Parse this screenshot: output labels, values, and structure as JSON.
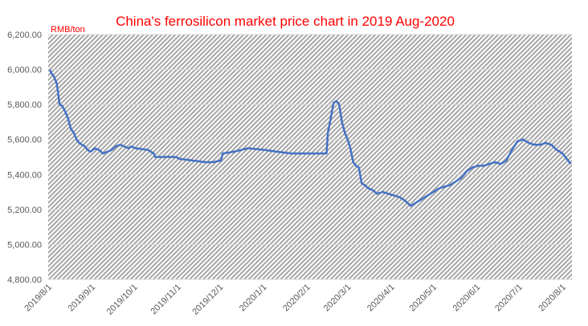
{
  "chart_data": {
    "type": "line",
    "title": "China's ferrosilicon market price chart in 2019 Aug-2020",
    "ylabel": "RMB/ton",
    "xlabel": "",
    "ylim": [
      4800,
      6200
    ],
    "y_ticks": [
      "6,200.00",
      "6,000.00",
      "5,800.00",
      "5,600.00",
      "5,400.00",
      "5,200.00",
      "5,000.00",
      "4,800.00"
    ],
    "x_ticks": [
      "2019/8/1",
      "2019/9/1",
      "2019/10/1",
      "2019/11/1",
      "2019/12/1",
      "2020/1/1",
      "2020/2/1",
      "2020/3/1",
      "2020/4/1",
      "2020/5/1",
      "2020/6/1",
      "2020/7/1",
      "2020/8/1"
    ],
    "grid": true,
    "line_color": "#4472c4",
    "plot_background": "patterned gray/white",
    "series": [
      {
        "name": "",
        "x": [
          "2019/8/1",
          "2019/8/2",
          "2019/8/4",
          "2019/8/6",
          "2019/8/8",
          "2019/8/10",
          "2019/8/12",
          "2019/8/14",
          "2019/8/16",
          "2019/8/18",
          "2019/8/20",
          "2019/8/22",
          "2019/8/24",
          "2019/8/26",
          "2019/8/28",
          "2019/8/30",
          "2019/9/2",
          "2019/9/5",
          "2019/9/8",
          "2019/9/11",
          "2019/9/14",
          "2019/9/17",
          "2019/9/20",
          "2019/9/23",
          "2019/9/26",
          "2019/9/28",
          "2019/10/1",
          "2019/10/10",
          "2019/10/14",
          "2019/10/15",
          "2019/10/30",
          "2019/11/1",
          "2019/11/20",
          "2019/11/25",
          "2019/12/1",
          "2019/12/2",
          "2019/12/10",
          "2019/12/15",
          "2019/12/20",
          "2020/1/1",
          "2020/1/10",
          "2020/1/20",
          "2020/1/31",
          "2020/2/10",
          "2020/2/14",
          "2020/2/15",
          "2020/2/17",
          "2020/2/19",
          "2020/2/21",
          "2020/2/23",
          "2020/2/25",
          "2020/2/27",
          "2020/2/29",
          "2020/3/2",
          "2020/3/4",
          "2020/3/6",
          "2020/3/8",
          "2020/3/10",
          "2020/3/12",
          "2020/3/15",
          "2020/3/18",
          "2020/3/21",
          "2020/3/25",
          "2020/3/29",
          "2020/4/2",
          "2020/4/6",
          "2020/4/10",
          "2020/4/14",
          "2020/4/18",
          "2020/4/22",
          "2020/4/26",
          "2020/4/30",
          "2020/5/4",
          "2020/5/8",
          "2020/5/12",
          "2020/5/16",
          "2020/5/20",
          "2020/5/24",
          "2020/5/28",
          "2020/6/1",
          "2020/6/5",
          "2020/6/9",
          "2020/6/13",
          "2020/6/17",
          "2020/6/21",
          "2020/6/25",
          "2020/6/29",
          "2020/7/3",
          "2020/7/7",
          "2020/7/11",
          "2020/7/15",
          "2020/7/19",
          "2020/7/23",
          "2020/7/27",
          "2020/7/31",
          "2020/8/2",
          "2020/8/4",
          "2020/8/6"
        ],
        "values": [
          6000,
          5980,
          5960,
          5920,
          5800,
          5790,
          5760,
          5720,
          5660,
          5640,
          5600,
          5580,
          5570,
          5560,
          5540,
          5530,
          5550,
          5540,
          5520,
          5530,
          5540,
          5560,
          5570,
          5560,
          5550,
          5560,
          5550,
          5540,
          5520,
          5500,
          5500,
          5490,
          5470,
          5470,
          5480,
          5520,
          5530,
          5540,
          5550,
          5540,
          5530,
          5520,
          5520,
          5520,
          5520,
          5640,
          5720,
          5810,
          5820,
          5800,
          5700,
          5640,
          5600,
          5550,
          5470,
          5450,
          5440,
          5350,
          5340,
          5320,
          5310,
          5290,
          5300,
          5290,
          5280,
          5270,
          5250,
          5220,
          5240,
          5260,
          5280,
          5300,
          5320,
          5330,
          5340,
          5360,
          5380,
          5420,
          5440,
          5450,
          5450,
          5460,
          5470,
          5460,
          5480,
          5540,
          5590,
          5600,
          5580,
          5570,
          5570,
          5580,
          5570,
          5540,
          5520,
          5500,
          5480,
          5460
        ]
      }
    ]
  }
}
